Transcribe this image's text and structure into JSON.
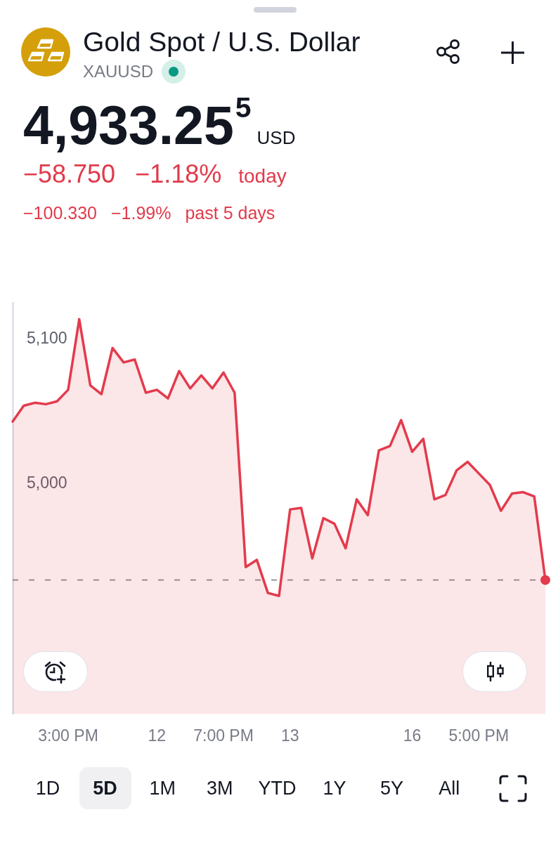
{
  "chart_data": {
    "type": "area",
    "title": "Gold Spot / U.S. Dollar",
    "subtitle": "XAUUSD",
    "annotations": [
      "4,933.25$^{5}$",
      "USD",
      "−58.750",
      "−1.18%",
      "today",
      "−100.330",
      "−1.99%",
      "past 5 days",
      "1D",
      "5D",
      "1M",
      "3M",
      "YTD",
      "1Y",
      "5Y",
      "All"
    ],
    "categories": [
      null,
      null,
      null,
      null,
      null,
      "3:00 PM",
      null,
      null,
      null,
      null,
      null,
      null,
      null,
      "12",
      null,
      null,
      null,
      null,
      null,
      "7:00 PM",
      null,
      null,
      null,
      null,
      null,
      "13",
      null,
      null,
      null,
      null,
      null,
      null,
      null,
      null,
      null,
      null,
      "16",
      null,
      null,
      null,
      null,
      null,
      "5:00 PM",
      null,
      null,
      null,
      null,
      null,
      null
    ],
    "values": [
      5043,
      5054,
      5056,
      5055,
      5057,
      5065,
      5114,
      5068,
      5062,
      5094,
      5084,
      5086,
      5063,
      5065,
      5059,
      5078,
      5066,
      5075,
      5066,
      5077,
      5063,
      4942,
      4947,
      4924,
      4922,
      4982,
      4983,
      4948,
      4976,
      4972,
      4955,
      4989,
      4978,
      5023,
      5026,
      5044,
      5022,
      5031,
      4989,
      4992,
      5009,
      5015,
      5007,
      4999,
      4981,
      4993,
      4994,
      4991,
      4933
    ],
    "color": "#e33b4c",
    "ylim": [
      4840,
      5125
    ],
    "yticks": [
      {
        "value": 5000,
        "label": "5,000"
      },
      {
        "value": 5100,
        "label": "5,100"
      }
    ],
    "ref_lines": [
      {
        "axis": "y",
        "value": 4933,
        "color": "#888888",
        "line_style": "dashed"
      }
    ],
    "grid": false,
    "legend": false
  }
}
